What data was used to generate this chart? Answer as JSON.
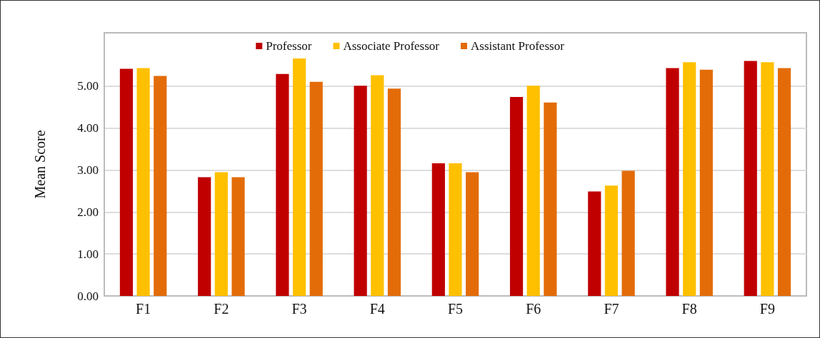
{
  "chart_data": {
    "type": "bar",
    "ylabel": "Mean Score",
    "categories": [
      "F1",
      "F2",
      "F3",
      "F4",
      "F5",
      "F6",
      "F7",
      "F8",
      "F9"
    ],
    "series": [
      {
        "name": "Professor",
        "color": "#c00000",
        "values": [
          5.41,
          2.83,
          5.29,
          5.01,
          3.16,
          4.74,
          2.49,
          5.43,
          5.6
        ]
      },
      {
        "name": "Associate Professor",
        "color": "#ffc000",
        "values": [
          5.43,
          2.95,
          5.66,
          5.26,
          3.16,
          5.01,
          2.63,
          5.57,
          5.57
        ]
      },
      {
        "name": "Assistant Professor",
        "color": "#e36c09",
        "values": [
          5.24,
          2.83,
          5.1,
          4.94,
          2.95,
          4.61,
          2.98,
          5.39,
          5.43
        ]
      }
    ],
    "ylim": [
      0,
      6.27
    ],
    "yticks": [
      {
        "value": 0,
        "label": "0.00"
      },
      {
        "value": 1,
        "label": "1.00"
      },
      {
        "value": 2,
        "label": "2.00"
      },
      {
        "value": 3,
        "label": "3.00"
      },
      {
        "value": 4,
        "label": "4.00"
      },
      {
        "value": 5,
        "label": "5.00"
      }
    ],
    "grid": "y",
    "legend": "top"
  }
}
